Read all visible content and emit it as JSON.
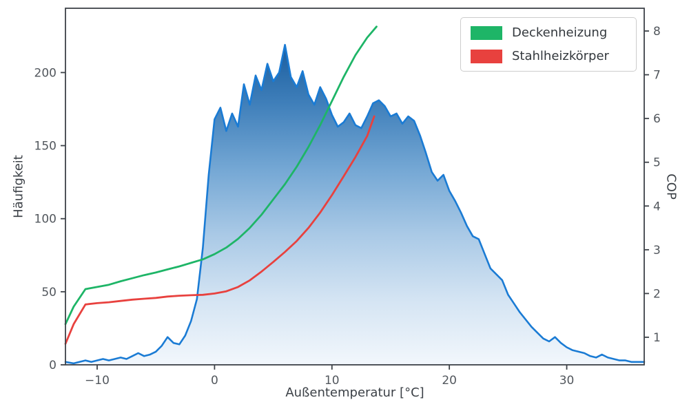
{
  "chart_data": {
    "type": "area+line",
    "title": "",
    "xlabel": "Außentemperatur [°C]",
    "ylabel_left": "Häufigkeit",
    "ylabel_right": "COP",
    "xlim": [
      -12.7,
      36.6
    ],
    "ylim_left": [
      0,
      244
    ],
    "ylim_right": [
      0.37,
      8.52
    ],
    "grid": false,
    "legend_position": "upper right",
    "colors": {
      "spine": "#3d4248",
      "tick_label": "#52575d",
      "axis_label": "#3b4046",
      "histogram_line": "#1a7bd4",
      "area_gradient": [
        [
          "0",
          "#f2f7fc"
        ],
        [
          "0.2",
          "#d4e4f3"
        ],
        [
          "0.4",
          "#a9c9e6"
        ],
        [
          "0.6",
          "#74a7d4"
        ],
        [
          "0.8",
          "#3f7fba"
        ],
        [
          "1",
          "#15599b"
        ]
      ]
    },
    "x_ticks": [
      {
        "value": -10,
        "label": "−10"
      },
      {
        "value": 0,
        "label": "0"
      },
      {
        "value": 10,
        "label": "10"
      },
      {
        "value": 20,
        "label": "20"
      },
      {
        "value": 30,
        "label": "30"
      }
    ],
    "y_ticks_left": [
      {
        "value": 0,
        "label": "0"
      },
      {
        "value": 50,
        "label": "50"
      },
      {
        "value": 100,
        "label": "100"
      },
      {
        "value": 150,
        "label": "150"
      },
      {
        "value": 200,
        "label": "200"
      }
    ],
    "y_ticks_right": [
      {
        "value": 1,
        "label": "1"
      },
      {
        "value": 2,
        "label": "2"
      },
      {
        "value": 3,
        "label": "3"
      },
      {
        "value": 4,
        "label": "4"
      },
      {
        "value": 5,
        "label": "5"
      },
      {
        "value": 6,
        "label": "6"
      },
      {
        "value": 7,
        "label": "7"
      },
      {
        "value": 8,
        "label": "8"
      }
    ],
    "histogram": {
      "axis": "left",
      "color": "#1a7bd4",
      "x": [
        -12.7,
        -12,
        -11.5,
        -11,
        -10.5,
        -10,
        -9.5,
        -9,
        -8.5,
        -8,
        -7.5,
        -7,
        -6.5,
        -6,
        -5.5,
        -5,
        -4.5,
        -4,
        -3.5,
        -3,
        -2.5,
        -2,
        -1.5,
        -1,
        -0.5,
        0,
        0.5,
        1,
        1.5,
        2,
        2.5,
        3,
        3.5,
        4,
        4.5,
        5,
        5.5,
        6,
        6.5,
        7,
        7.5,
        8,
        8.5,
        9,
        9.5,
        10,
        10.5,
        11,
        11.5,
        12,
        12.5,
        13,
        13.5,
        14,
        14.5,
        15,
        15.5,
        16,
        16.5,
        17,
        17.5,
        18,
        18.5,
        19,
        19.5,
        20,
        20.5,
        21,
        21.5,
        22,
        22.5,
        23,
        23.5,
        24,
        24.5,
        25,
        25.5,
        26,
        26.5,
        27,
        27.5,
        28,
        28.5,
        29,
        29.5,
        30,
        30.5,
        31,
        31.5,
        32,
        32.5,
        33,
        33.5,
        34,
        34.5,
        35,
        35.5,
        36,
        36.6
      ],
      "values": [
        2,
        1,
        2,
        3,
        2,
        3,
        4,
        3,
        4,
        5,
        4,
        6,
        8,
        6,
        7,
        9,
        13,
        19,
        15,
        14,
        20,
        30,
        45,
        80,
        130,
        168,
        176,
        160,
        172,
        163,
        192,
        178,
        198,
        188,
        206,
        194,
        200,
        219,
        197,
        190,
        201,
        185,
        178,
        190,
        182,
        171,
        163,
        166,
        172,
        164,
        162,
        170,
        179,
        181,
        177,
        170,
        172,
        165,
        170,
        167,
        157,
        145,
        132,
        126,
        130,
        119,
        112,
        104,
        95,
        88,
        86,
        76,
        66,
        62,
        58,
        48,
        42,
        36,
        31,
        26,
        22,
        18,
        16,
        19,
        15,
        12,
        10,
        9,
        8,
        6,
        5,
        7,
        5,
        4,
        3,
        3,
        2,
        2,
        2
      ]
    },
    "series": [
      {
        "id": "deckenheizung",
        "name": "Deckenheizung",
        "color": "#1eb567",
        "axis": "right",
        "points": [
          [
            -12.7,
            1.3
          ],
          [
            -12,
            1.7
          ],
          [
            -11,
            2.1
          ],
          [
            -10,
            2.15
          ],
          [
            -9,
            2.2
          ],
          [
            -8,
            2.28
          ],
          [
            -7,
            2.35
          ],
          [
            -6,
            2.42
          ],
          [
            -5,
            2.48
          ],
          [
            -4,
            2.55
          ],
          [
            -3,
            2.62
          ],
          [
            -2,
            2.7
          ],
          [
            -1,
            2.78
          ],
          [
            0,
            2.9
          ],
          [
            1,
            3.05
          ],
          [
            2,
            3.25
          ],
          [
            3,
            3.5
          ],
          [
            4,
            3.8
          ],
          [
            5,
            4.15
          ],
          [
            6,
            4.5
          ],
          [
            7,
            4.9
          ],
          [
            8,
            5.35
          ],
          [
            9,
            5.85
          ],
          [
            10,
            6.4
          ],
          [
            11,
            6.95
          ],
          [
            12,
            7.45
          ],
          [
            13,
            7.85
          ],
          [
            13.8,
            8.1
          ]
        ]
      },
      {
        "id": "stahlheizkoerper",
        "name": "Stahlheizkörper",
        "color": "#e8413e",
        "axis": "right",
        "points": [
          [
            -12.7,
            0.85
          ],
          [
            -12,
            1.3
          ],
          [
            -11,
            1.75
          ],
          [
            -10,
            1.78
          ],
          [
            -9,
            1.8
          ],
          [
            -8,
            1.83
          ],
          [
            -7,
            1.86
          ],
          [
            -6,
            1.88
          ],
          [
            -5,
            1.9
          ],
          [
            -4,
            1.93
          ],
          [
            -3,
            1.95
          ],
          [
            -2,
            1.96
          ],
          [
            -1,
            1.97
          ],
          [
            0,
            2.0
          ],
          [
            1,
            2.05
          ],
          [
            2,
            2.15
          ],
          [
            3,
            2.3
          ],
          [
            4,
            2.5
          ],
          [
            5,
            2.72
          ],
          [
            6,
            2.95
          ],
          [
            7,
            3.2
          ],
          [
            8,
            3.5
          ],
          [
            9,
            3.85
          ],
          [
            10,
            4.25
          ],
          [
            11,
            4.68
          ],
          [
            12,
            5.12
          ],
          [
            13,
            5.6
          ],
          [
            13.6,
            6.05
          ]
        ]
      }
    ]
  }
}
